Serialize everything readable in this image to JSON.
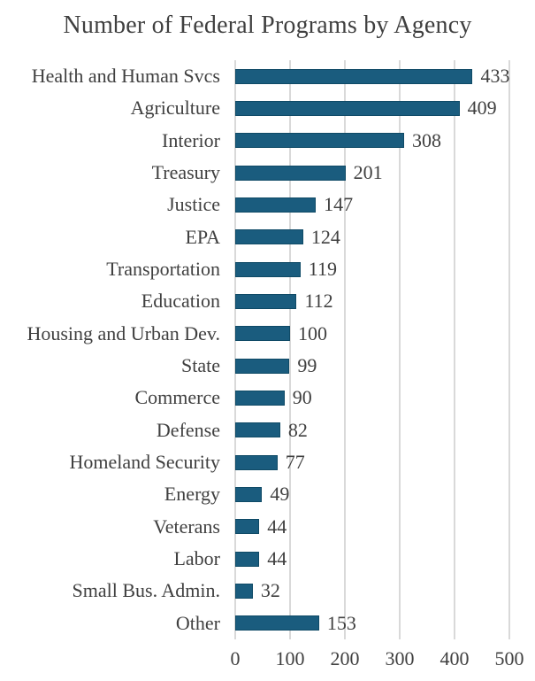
{
  "chart_data": {
    "type": "bar",
    "orientation": "horizontal",
    "title": "Number of Federal Programs by Agency",
    "xlabel": "",
    "ylabel": "",
    "categories": [
      "Health and Human Svcs",
      "Agriculture",
      "Interior",
      "Treasury",
      "Justice",
      "EPA",
      "Transportation",
      "Education",
      "Housing and Urban Dev.",
      "State",
      "Commerce",
      "Defense",
      "Homeland Security",
      "Energy",
      "Veterans",
      "Labor",
      "Small Bus. Admin.",
      "Other"
    ],
    "values": [
      433,
      409,
      308,
      201,
      147,
      124,
      119,
      112,
      100,
      99,
      90,
      82,
      77,
      49,
      44,
      44,
      32,
      153
    ],
    "data_labels": [
      "433",
      "409",
      "308",
      "201",
      "147",
      "124",
      "119",
      "112",
      "100",
      "99",
      "90",
      "82",
      "77",
      "49",
      "44",
      "44",
      "32",
      "153"
    ],
    "xlim": [
      0,
      500
    ],
    "x_ticks": [
      0,
      100,
      200,
      300,
      400,
      500
    ],
    "x_tick_labels": [
      "0",
      "100",
      "200",
      "300",
      "400",
      "500"
    ],
    "grid": true,
    "legend": false,
    "colors": {
      "bar_fill": "#1A5C7E",
      "bar_border": "#0F4A66",
      "gridline": "#D9D9D9",
      "text": "#404040",
      "title_text": "#3F3F3F",
      "background": "#FFFFFF"
    }
  }
}
